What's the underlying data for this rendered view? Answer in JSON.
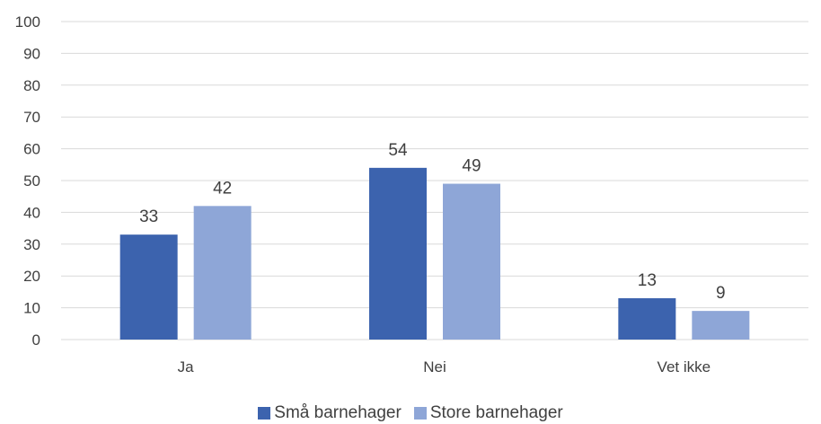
{
  "chart_data": {
    "type": "bar",
    "categories": [
      "Ja",
      "Nei",
      "Vet ikke"
    ],
    "series": [
      {
        "name": "Små barnehager",
        "values": [
          33,
          54,
          13
        ],
        "color": "#3c63ae"
      },
      {
        "name": "Store barnehager",
        "values": [
          42,
          49,
          9
        ],
        "color": "#8ea6d7"
      }
    ],
    "yticks": [
      0,
      10,
      20,
      30,
      40,
      50,
      60,
      70,
      80,
      90,
      100
    ],
    "ylim": [
      0,
      100
    ],
    "grid": true,
    "legend_position": "bottom",
    "data_labels": true
  }
}
